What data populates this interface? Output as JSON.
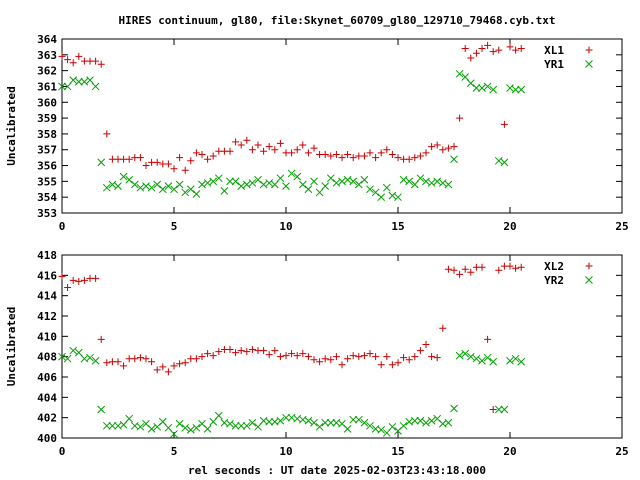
{
  "title": "HIRES continuum, gl80, file:Skynet_60709_gl80_129710_79468.cyb.txt",
  "xlabel": "rel seconds : UT date 2025-02-03T23:43:18.000",
  "colors": {
    "red": "#cc0000",
    "green": "#00a000"
  },
  "chart_data": [
    {
      "type": "scatter",
      "ylabel": "Uncalibrated",
      "xlim": [
        0,
        25
      ],
      "ylim": [
        353,
        364
      ],
      "x_ticks": [
        0,
        5,
        10,
        15,
        20,
        25
      ],
      "y_ticks": [
        353,
        354,
        355,
        356,
        357,
        358,
        359,
        360,
        361,
        362,
        363,
        364
      ],
      "legend_position": "top-right",
      "series": [
        {
          "name": "XL1",
          "marker": "plus",
          "color": "#cc0000",
          "x": [
            0.0,
            0.25,
            0.5,
            0.75,
            1.0,
            1.25,
            1.5,
            1.75,
            2.0,
            2.25,
            2.5,
            2.75,
            3.0,
            3.25,
            3.5,
            3.75,
            4.0,
            4.25,
            4.5,
            4.75,
            5.0,
            5.25,
            5.5,
            5.75,
            6.0,
            6.25,
            6.5,
            6.75,
            7.0,
            7.25,
            7.5,
            7.75,
            8.0,
            8.25,
            8.5,
            8.75,
            9.0,
            9.25,
            9.5,
            9.75,
            10.0,
            10.25,
            10.5,
            10.75,
            11.0,
            11.25,
            11.5,
            11.75,
            12.0,
            12.25,
            12.5,
            12.75,
            13.0,
            13.25,
            13.5,
            13.75,
            14.0,
            14.25,
            14.5,
            14.75,
            15.0,
            15.25,
            15.5,
            15.75,
            16.0,
            16.25,
            16.5,
            16.75,
            17.0,
            17.25,
            17.5,
            17.75,
            18.0,
            18.25,
            18.5,
            18.75,
            19.0,
            19.25,
            19.5,
            19.75,
            20.0,
            20.25,
            20.5
          ],
          "y": [
            362.9,
            362.7,
            362.5,
            362.9,
            362.6,
            362.6,
            362.6,
            362.4,
            358.0,
            356.4,
            356.4,
            356.4,
            356.4,
            356.5,
            356.5,
            356.0,
            356.2,
            356.2,
            356.1,
            356.1,
            355.8,
            356.5,
            355.7,
            356.3,
            356.8,
            356.7,
            356.4,
            356.6,
            356.9,
            356.9,
            356.9,
            357.5,
            357.3,
            357.6,
            357.0,
            357.3,
            356.9,
            357.2,
            357.0,
            357.4,
            356.8,
            356.8,
            357.0,
            357.3,
            356.8,
            357.1,
            356.7,
            356.7,
            356.6,
            356.7,
            356.5,
            356.7,
            356.5,
            356.6,
            356.6,
            356.8,
            356.5,
            356.8,
            357.0,
            356.7,
            356.5,
            356.4,
            356.4,
            356.5,
            356.6,
            356.8,
            357.2,
            357.3,
            357.0,
            357.1,
            357.2,
            359.0,
            363.4,
            362.8,
            363.1,
            363.4,
            363.6,
            363.2,
            363.3,
            358.6,
            363.5,
            363.3,
            363.4
          ],
          "note": ""
        },
        {
          "name": "YR1",
          "marker": "cross",
          "color": "#00a000",
          "x": [
            0.0,
            0.25,
            0.5,
            0.75,
            1.0,
            1.25,
            1.5,
            1.75,
            2.0,
            2.25,
            2.5,
            2.75,
            3.0,
            3.25,
            3.5,
            3.75,
            4.0,
            4.25,
            4.5,
            4.75,
            5.0,
            5.25,
            5.5,
            5.75,
            6.0,
            6.25,
            6.5,
            6.75,
            7.0,
            7.25,
            7.5,
            7.75,
            8.0,
            8.25,
            8.5,
            8.75,
            9.0,
            9.25,
            9.5,
            9.75,
            10.0,
            10.25,
            10.5,
            10.75,
            11.0,
            11.25,
            11.5,
            11.75,
            12.0,
            12.25,
            12.5,
            12.75,
            13.0,
            13.25,
            13.5,
            13.75,
            14.0,
            14.25,
            14.5,
            14.75,
            15.0,
            15.25,
            15.5,
            15.75,
            16.0,
            16.25,
            16.5,
            16.75,
            17.0,
            17.25,
            17.5,
            17.75,
            18.0,
            18.25,
            18.5,
            18.75,
            19.0,
            19.25,
            19.5,
            19.75,
            20.0,
            20.25,
            20.5
          ],
          "y": [
            361.0,
            361.0,
            361.4,
            361.3,
            361.3,
            361.4,
            361.0,
            356.2,
            354.6,
            354.8,
            354.7,
            355.3,
            355.1,
            354.8,
            354.6,
            354.7,
            354.6,
            354.8,
            354.5,
            354.7,
            354.5,
            354.8,
            354.3,
            354.5,
            354.2,
            354.8,
            354.9,
            355.0,
            355.2,
            354.4,
            355.0,
            355.0,
            354.7,
            354.8,
            354.9,
            355.1,
            354.8,
            354.9,
            354.8,
            355.2,
            354.7,
            355.5,
            355.3,
            354.8,
            354.5,
            355.0,
            354.3,
            354.7,
            355.2,
            354.9,
            355.0,
            355.1,
            355.0,
            354.8,
            355.1,
            354.5,
            354.3,
            354.0,
            354.6,
            354.1,
            354.0,
            355.1,
            355.0,
            354.8,
            355.2,
            355.0,
            354.9,
            355.0,
            354.9,
            354.8,
            356.4,
            361.8,
            361.6,
            361.2,
            360.9,
            360.9,
            361.0,
            360.8,
            356.3,
            356.2,
            360.9,
            360.8,
            360.8
          ],
          "note": ""
        }
      ]
    },
    {
      "type": "scatter",
      "ylabel": "Uncalibrated",
      "xlim": [
        0,
        25
      ],
      "ylim": [
        400,
        418
      ],
      "x_ticks": [
        0,
        5,
        10,
        15,
        20,
        25
      ],
      "y_ticks": [
        400,
        402,
        404,
        406,
        408,
        410,
        412,
        414,
        416,
        418
      ],
      "legend_position": "top-right",
      "series": [
        {
          "name": "XL2",
          "marker": "plus",
          "color": "#cc0000",
          "x": [
            0.0,
            0.25,
            0.5,
            0.75,
            1.0,
            1.25,
            1.5,
            1.75,
            2.0,
            2.25,
            2.5,
            2.75,
            3.0,
            3.25,
            3.5,
            3.75,
            4.0,
            4.25,
            4.5,
            4.75,
            5.0,
            5.25,
            5.5,
            5.75,
            6.0,
            6.25,
            6.5,
            6.75,
            7.0,
            7.25,
            7.5,
            7.75,
            8.0,
            8.25,
            8.5,
            8.75,
            9.0,
            9.25,
            9.5,
            9.75,
            10.0,
            10.25,
            10.5,
            10.75,
            11.0,
            11.25,
            11.5,
            11.75,
            12.0,
            12.25,
            12.5,
            12.75,
            13.0,
            13.25,
            13.5,
            13.75,
            14.0,
            14.25,
            14.5,
            14.75,
            15.0,
            15.25,
            15.5,
            15.75,
            16.0,
            16.25,
            16.5,
            16.75,
            17.0,
            17.25,
            17.5,
            17.75,
            18.0,
            18.25,
            18.5,
            18.75,
            19.0,
            19.25,
            19.5,
            19.75,
            20.0,
            20.25,
            20.5
          ],
          "y": [
            415.9,
            414.8,
            415.5,
            415.4,
            415.5,
            415.7,
            415.7,
            409.7,
            407.4,
            407.5,
            407.5,
            407.1,
            407.8,
            407.8,
            407.9,
            407.8,
            407.5,
            406.7,
            407.0,
            406.5,
            407.1,
            407.3,
            407.4,
            407.8,
            407.8,
            408.0,
            408.3,
            408.1,
            408.5,
            408.7,
            408.7,
            408.4,
            408.6,
            408.5,
            408.7,
            408.6,
            408.6,
            408.2,
            408.6,
            408.0,
            408.1,
            408.3,
            408.1,
            408.3,
            408.0,
            407.7,
            407.5,
            407.8,
            407.7,
            408.0,
            407.2,
            407.8,
            408.1,
            408.0,
            408.1,
            408.3,
            408.0,
            407.2,
            408.0,
            407.2,
            407.4,
            407.9,
            407.7,
            408.0,
            408.6,
            409.2,
            408.0,
            407.9,
            410.8,
            416.6,
            416.5,
            416.1,
            416.6,
            416.3,
            416.8,
            416.8,
            409.7,
            402.8,
            416.5,
            416.9,
            416.9,
            416.7,
            416.8
          ],
          "note": ""
        },
        {
          "name": "YR2",
          "marker": "cross",
          "color": "#00a000",
          "x": [
            0.0,
            0.25,
            0.5,
            0.75,
            1.0,
            1.25,
            1.5,
            1.75,
            2.0,
            2.25,
            2.5,
            2.75,
            3.0,
            3.25,
            3.5,
            3.75,
            4.0,
            4.25,
            4.5,
            4.75,
            5.0,
            5.25,
            5.5,
            5.75,
            6.0,
            6.25,
            6.5,
            6.75,
            7.0,
            7.25,
            7.5,
            7.75,
            8.0,
            8.25,
            8.5,
            8.75,
            9.0,
            9.25,
            9.5,
            9.75,
            10.0,
            10.25,
            10.5,
            10.75,
            11.0,
            11.25,
            11.5,
            11.75,
            12.0,
            12.25,
            12.5,
            12.75,
            13.0,
            13.25,
            13.5,
            13.75,
            14.0,
            14.25,
            14.5,
            14.75,
            15.0,
            15.25,
            15.5,
            15.75,
            16.0,
            16.25,
            16.5,
            16.75,
            17.0,
            17.25,
            17.5,
            17.75,
            18.0,
            18.25,
            18.5,
            18.75,
            19.0,
            19.25,
            19.5,
            19.75,
            20.0,
            20.25,
            20.5
          ],
          "y": [
            408.0,
            407.8,
            408.6,
            408.4,
            407.8,
            407.9,
            407.6,
            402.8,
            401.2,
            401.2,
            401.2,
            401.3,
            401.9,
            401.2,
            401.1,
            401.4,
            400.9,
            401.1,
            401.6,
            401.0,
            400.4,
            401.4,
            401.0,
            400.8,
            401.0,
            401.4,
            400.9,
            401.6,
            402.2,
            401.5,
            401.4,
            401.2,
            401.2,
            401.2,
            401.5,
            401.1,
            401.7,
            401.6,
            401.6,
            401.7,
            402.0,
            402.0,
            401.9,
            401.8,
            401.7,
            401.5,
            401.1,
            401.5,
            401.5,
            401.5,
            401.4,
            400.9,
            401.8,
            401.8,
            401.5,
            401.2,
            400.9,
            400.8,
            400.5,
            401.1,
            400.7,
            401.2,
            401.6,
            401.7,
            401.7,
            401.5,
            401.7,
            401.9,
            401.4,
            401.5,
            402.9,
            408.1,
            408.3,
            408.0,
            407.8,
            407.6,
            407.9,
            407.5,
            402.8,
            402.8,
            407.6,
            407.8,
            407.5
          ],
          "note": ""
        }
      ]
    }
  ]
}
